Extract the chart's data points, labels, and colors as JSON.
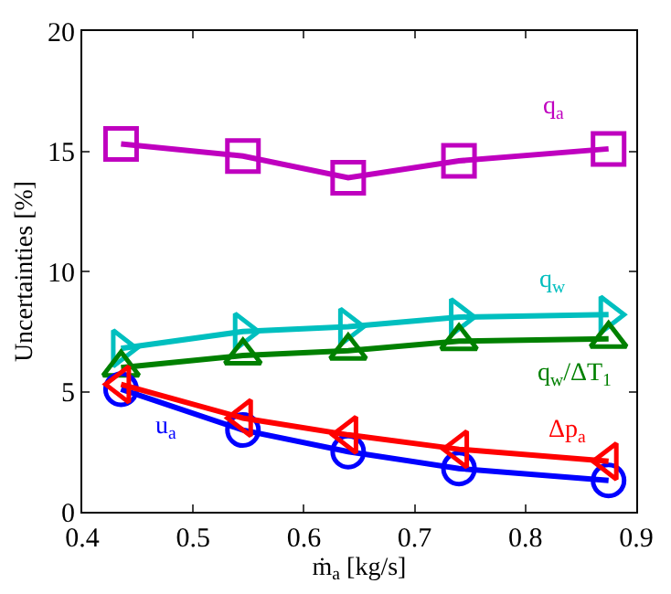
{
  "chart_data": {
    "type": "line",
    "xlabel": "ṁ$_{a}$ [kg/s]",
    "ylabel": "Uncertainties [%]",
    "x": [
      0.435,
      0.545,
      0.64,
      0.74,
      0.875
    ],
    "xlim": [
      0.4,
      0.9
    ],
    "xticks": [
      0.4,
      0.5,
      0.6,
      0.7,
      0.8,
      0.9
    ],
    "ylim": [
      0,
      20
    ],
    "yticks": [
      0,
      5,
      10,
      15,
      20
    ],
    "grid": false,
    "legend": false,
    "series": [
      {
        "name": "q$_{a}$",
        "color": "#bf00bf",
        "marker": "square",
        "values": [
          15.3,
          14.8,
          13.9,
          14.6,
          15.1
        ]
      },
      {
        "name": "q$_{w}$",
        "color": "#00bfbf",
        "marker": "triangle-right",
        "values": [
          6.8,
          7.5,
          7.7,
          8.1,
          8.2
        ]
      },
      {
        "name": "q$_{w}$/ΔT$_{1}$",
        "color": "#008000",
        "marker": "triangle-up",
        "values": [
          6.0,
          6.5,
          6.7,
          7.1,
          7.2
        ]
      },
      {
        "name": "u$_{a}$",
        "color": "#0000ff",
        "marker": "circle",
        "values": [
          5.1,
          3.4,
          2.5,
          1.8,
          1.3
        ]
      },
      {
        "name": "Δp$_{a}$",
        "color": "#ff0000",
        "marker": "triangle-left",
        "values": [
          5.3,
          3.9,
          3.2,
          2.6,
          2.1
        ]
      }
    ]
  }
}
